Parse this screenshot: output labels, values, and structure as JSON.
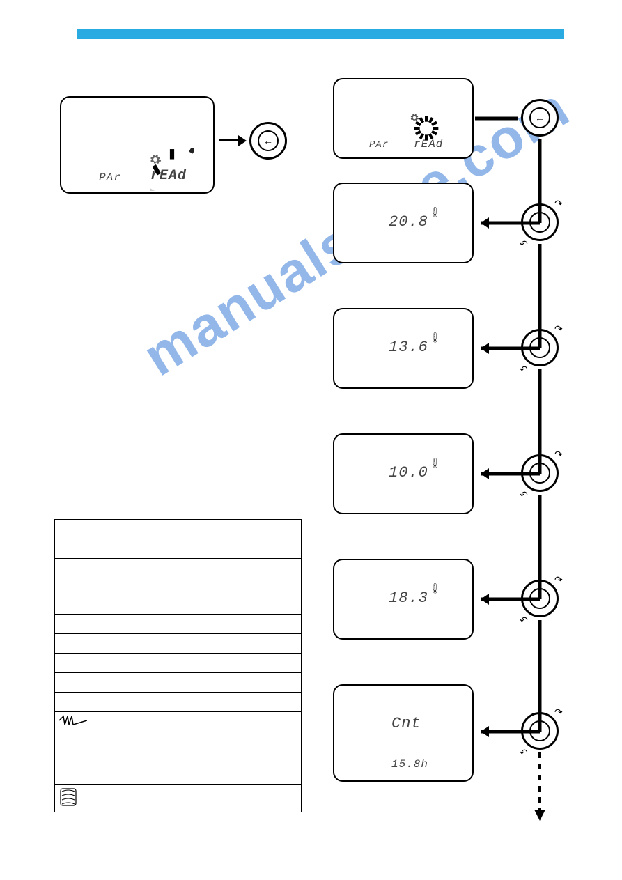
{
  "colors": {
    "header_bar": "#29abe2",
    "watermark": "#3b7dd8",
    "seg_text": "#444444",
    "border": "#000000"
  },
  "watermark_text": "manualshive.com",
  "left_screen": {
    "left_label": "PAr",
    "right_label": "rEAd"
  },
  "screens": [
    {
      "upper": "",
      "left_label": "PAr",
      "right_label": "rEAd",
      "has_spinner": true,
      "has_thermo": false,
      "lower": ""
    },
    {
      "upper": "20.8",
      "left_label": "",
      "right_label": "",
      "has_spinner": false,
      "has_thermo": true,
      "lower": ""
    },
    {
      "upper": "13.6",
      "left_label": "",
      "right_label": "",
      "has_spinner": false,
      "has_thermo": true,
      "lower": ""
    },
    {
      "upper": "10.0",
      "left_label": "",
      "right_label": "",
      "has_spinner": false,
      "has_thermo": true,
      "lower": ""
    },
    {
      "upper": "18.3",
      "left_label": "",
      "right_label": "",
      "has_spinner": false,
      "has_thermo": true,
      "lower": ""
    },
    {
      "upper": "Cnt",
      "left_label": "",
      "right_label": "",
      "has_spinner": false,
      "has_thermo": false,
      "lower": "15.8h"
    }
  ],
  "table_rows": [
    [
      "",
      ""
    ],
    [
      "",
      ""
    ],
    [
      "",
      ""
    ],
    [
      "",
      ""
    ],
    [
      "",
      ""
    ],
    [
      "",
      ""
    ],
    [
      "",
      ""
    ],
    [
      "",
      ""
    ],
    [
      "",
      ""
    ],
    [
      "_vw_",
      ""
    ],
    [
      "",
      ""
    ],
    [
      "_sc_",
      ""
    ]
  ]
}
